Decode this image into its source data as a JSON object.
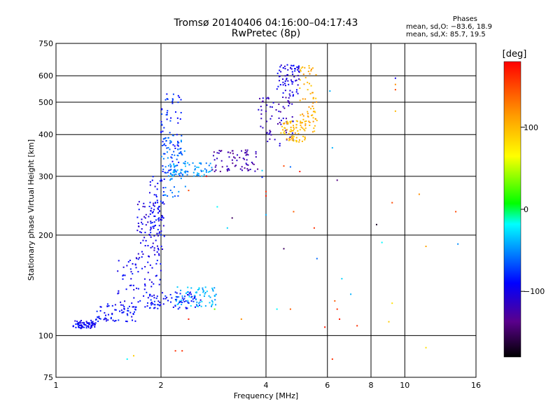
{
  "title": {
    "line1": "Tromsø 20140406 04:16:00–04:17:43",
    "line2": "RwPretec (8p)"
  },
  "phases": {
    "header": "Phases",
    "o_mode": "mean, sd,O: −83.6, 18.9",
    "x_mode": "mean, sd,X:  85.7, 19.5"
  },
  "colorbar": {
    "unit": "[deg]",
    "ticks": [
      "100",
      "0",
      "−100"
    ],
    "tick_values": [
      100,
      0,
      -100
    ],
    "range": [
      -180,
      180
    ]
  },
  "chart_data": {
    "type": "scatter",
    "xlabel": "Frequency [MHz]",
    "ylabel": "Stationary phase Virtual Height [km]",
    "x_scale": "log",
    "y_scale": "log",
    "xlim": [
      1,
      16
    ],
    "ylim": [
      75,
      750
    ],
    "x_ticks": [
      1,
      2,
      4,
      6,
      8,
      10,
      16
    ],
    "x_tick_labels": [
      "1",
      "2",
      "4",
      "6",
      "8",
      "10",
      "16"
    ],
    "y_ticks": [
      75,
      100,
      200,
      300,
      400,
      500,
      600,
      750
    ],
    "y_tick_labels": [
      "75",
      "100",
      "200",
      "300",
      "400",
      "500",
      "600",
      "750"
    ],
    "grid": true,
    "point_color_by": "phase [deg]",
    "clusters": [
      {
        "x": [
          1.12,
          1.3
        ],
        "y": [
          105,
          111
        ],
        "phase": -95
      },
      {
        "x": [
          1.3,
          1.7
        ],
        "y": [
          110,
          125
        ],
        "phase": -90
      },
      {
        "x": [
          1.5,
          2.0
        ],
        "y": [
          120,
          170
        ],
        "phase": -95
      },
      {
        "x": [
          1.7,
          2.0
        ],
        "y": [
          170,
          260
        ],
        "phase": -100
      },
      {
        "x": [
          1.85,
          2.05
        ],
        "y": [
          180,
          300
        ],
        "phase": -92
      },
      {
        "x": [
          2.0,
          2.3
        ],
        "y": [
          300,
          540
        ],
        "phase": -80
      },
      {
        "x": [
          2.0,
          2.35
        ],
        "y": [
          260,
          400
        ],
        "phase": -60
      },
      {
        "x": [
          2.1,
          2.8
        ],
        "y": [
          300,
          330
        ],
        "phase": -45
      },
      {
        "x": [
          2.2,
          2.9
        ],
        "y": [
          122,
          140
        ],
        "phase": -40
      },
      {
        "x": [
          1.8,
          2.6
        ],
        "y": [
          120,
          135
        ],
        "phase": -85
      },
      {
        "x": [
          2.8,
          3.8
        ],
        "y": [
          310,
          360
        ],
        "phase": -125
      },
      {
        "x": [
          3.8,
          4.8
        ],
        "y": [
          370,
          520
        ],
        "phase": -115
      },
      {
        "x": [
          4.3,
          5.0
        ],
        "y": [
          520,
          650
        ],
        "phase": -100
      },
      {
        "x": [
          4.4,
          5.2
        ],
        "y": [
          380,
          440
        ],
        "phase": 100
      },
      {
        "x": [
          5.0,
          5.6
        ],
        "y": [
          400,
          650
        ],
        "phase": 105
      }
    ],
    "scattered_points": [
      {
        "x": 1.6,
        "y": 85,
        "phase": -20
      },
      {
        "x": 1.67,
        "y": 87,
        "phase": 90
      },
      {
        "x": 2.2,
        "y": 90,
        "phase": 160
      },
      {
        "x": 2.3,
        "y": 90,
        "phase": 160
      },
      {
        "x": 2.4,
        "y": 112,
        "phase": 170
      },
      {
        "x": 2.85,
        "y": 120,
        "phase": 30
      },
      {
        "x": 3.4,
        "y": 112,
        "phase": 120
      },
      {
        "x": 3.1,
        "y": 210,
        "phase": -30
      },
      {
        "x": 3.2,
        "y": 225,
        "phase": -150
      },
      {
        "x": 2.9,
        "y": 243,
        "phase": -20
      },
      {
        "x": 2.4,
        "y": 272,
        "phase": 150
      },
      {
        "x": 4.0,
        "y": 270,
        "phase": 160
      },
      {
        "x": 4.5,
        "y": 322,
        "phase": 150
      },
      {
        "x": 4.8,
        "y": 235,
        "phase": 140
      },
      {
        "x": 5.5,
        "y": 210,
        "phase": 160
      },
      {
        "x": 5.6,
        "y": 170,
        "phase": -60
      },
      {
        "x": 6.2,
        "y": 85,
        "phase": 160
      },
      {
        "x": 6.3,
        "y": 127,
        "phase": 140
      },
      {
        "x": 6.4,
        "y": 120,
        "phase": 160
      },
      {
        "x": 6.5,
        "y": 112,
        "phase": 170
      },
      {
        "x": 6.6,
        "y": 148,
        "phase": -30
      },
      {
        "x": 7.0,
        "y": 133,
        "phase": -40
      },
      {
        "x": 7.3,
        "y": 107,
        "phase": 160
      },
      {
        "x": 5.9,
        "y": 106,
        "phase": 170
      },
      {
        "x": 8.3,
        "y": 215,
        "phase": -170
      },
      {
        "x": 8.6,
        "y": 190,
        "phase": -20
      },
      {
        "x": 9.4,
        "y": 590,
        "phase": -100
      },
      {
        "x": 9.4,
        "y": 565,
        "phase": 120
      },
      {
        "x": 9.4,
        "y": 545,
        "phase": 150
      },
      {
        "x": 9.4,
        "y": 470,
        "phase": 100
      },
      {
        "x": 9.2,
        "y": 250,
        "phase": 150
      },
      {
        "x": 11.0,
        "y": 265,
        "phase": 120
      },
      {
        "x": 11.5,
        "y": 185,
        "phase": 110
      },
      {
        "x": 14.0,
        "y": 235,
        "phase": 150
      },
      {
        "x": 14.2,
        "y": 188,
        "phase": -50
      },
      {
        "x": 11.5,
        "y": 92,
        "phase": 80
      },
      {
        "x": 9.2,
        "y": 125,
        "phase": 80
      },
      {
        "x": 9.0,
        "y": 110,
        "phase": 90
      },
      {
        "x": 6.2,
        "y": 365,
        "phase": -40
      },
      {
        "x": 5.0,
        "y": 310,
        "phase": 170
      },
      {
        "x": 6.4,
        "y": 292,
        "phase": -140
      },
      {
        "x": 6.1,
        "y": 540,
        "phase": -40
      },
      {
        "x": 4.7,
        "y": 120,
        "phase": 140
      },
      {
        "x": 4.3,
        "y": 120,
        "phase": -20
      },
      {
        "x": 4.0,
        "y": 262,
        "phase": 170
      },
      {
        "x": 4.0,
        "y": 230,
        "phase": -40
      },
      {
        "x": 4.5,
        "y": 182,
        "phase": -150
      },
      {
        "x": 4.7,
        "y": 320,
        "phase": -60
      },
      {
        "x": 3.9,
        "y": 312,
        "phase": -30
      },
      {
        "x": 3.9,
        "y": 298,
        "phase": -80
      },
      {
        "x": 2.7,
        "y": 300,
        "phase": 180
      }
    ]
  }
}
